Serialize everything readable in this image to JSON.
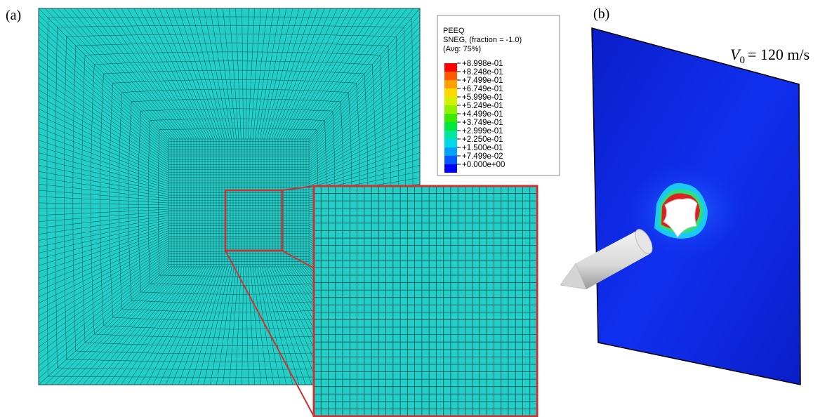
{
  "panel_a": {
    "label": "(a)"
  },
  "panel_b": {
    "label": "(b)",
    "velocity": {
      "symbol": "V",
      "subscript": "0",
      "rest": "= 120 m/s"
    }
  },
  "legend": {
    "title": [
      "PEEQ",
      "SNEG, (fraction = -1.0)",
      "(Avg: 75%)"
    ],
    "entries": [
      {
        "label": "+8.998e-01",
        "color": "#ff0000"
      },
      {
        "label": "+8.248e-01",
        "color": "#ff5a00"
      },
      {
        "label": "+7.499e-01",
        "color": "#ffa000"
      },
      {
        "label": "+6.749e-01",
        "color": "#ffd800"
      },
      {
        "label": "+5.999e-01",
        "color": "#d2f000"
      },
      {
        "label": "+5.249e-01",
        "color": "#8ff000"
      },
      {
        "label": "+4.499e-01",
        "color": "#3ce800"
      },
      {
        "label": "+3.749e-01",
        "color": "#00e83c"
      },
      {
        "label": "+2.999e-01",
        "color": "#00e8a0"
      },
      {
        "label": "+2.250e-01",
        "color": "#00d8e8"
      },
      {
        "label": "+1.500e-01",
        "color": "#00a0ff"
      },
      {
        "label": "+7.499e-02",
        "color": "#005aff"
      },
      {
        "label": "+0.000e+00",
        "color": "#0000ff"
      }
    ]
  }
}
